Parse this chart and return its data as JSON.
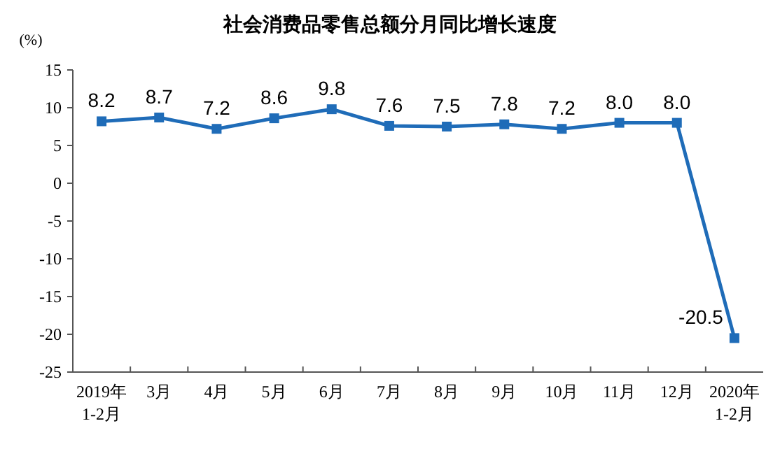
{
  "chart_data": {
    "type": "line",
    "title": "社会消费品零售总额分月同比增长速度",
    "ylabel": "(%)",
    "categories": [
      "2019年\n1-2月",
      "3月",
      "4月",
      "5月",
      "6月",
      "7月",
      "8月",
      "9月",
      "10月",
      "11月",
      "12月",
      "2020年\n1-2月"
    ],
    "series": [
      {
        "color": "#1f6cb8",
        "values": [
          8.2,
          8.7,
          7.2,
          8.6,
          9.8,
          7.6,
          7.5,
          7.8,
          7.2,
          8.0,
          8.0,
          -20.5
        ],
        "value_labels": [
          "8.2",
          "8.7",
          "7.2",
          "8.6",
          "9.8",
          "7.6",
          "7.5",
          "7.8",
          "7.2",
          "8.0",
          "8.0",
          "-20.5"
        ]
      }
    ],
    "ylim": [
      -25,
      15
    ],
    "yticks": [
      -25,
      -20,
      -15,
      -10,
      -5,
      0,
      5,
      10,
      15
    ],
    "grid": false,
    "marker": "square",
    "line_style": "solid"
  }
}
